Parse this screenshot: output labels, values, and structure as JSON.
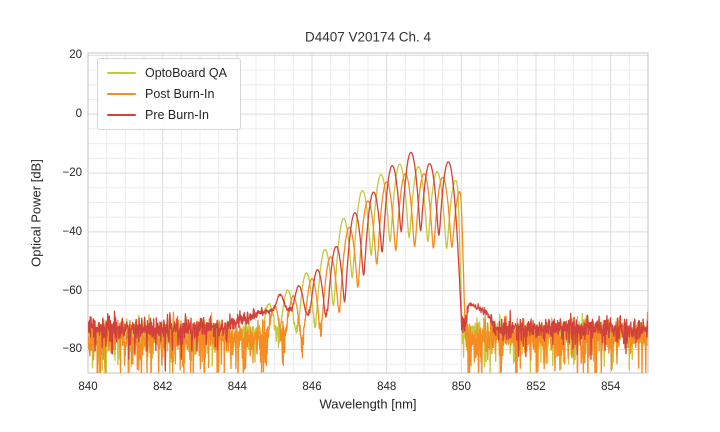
{
  "chart_data": {
    "type": "line",
    "title": "D4407 V20174 Ch. 4",
    "xlabel": "Wavelength [nm]",
    "ylabel": "Optical Power [dB]",
    "xlim": [
      840,
      855
    ],
    "ylim": [
      -88,
      20.8
    ],
    "xticks": [
      840,
      842,
      844,
      846,
      848,
      850,
      852,
      854
    ],
    "xtick_labels": [
      "840",
      "842",
      "844",
      "846",
      "848",
      "850",
      "852",
      "854"
    ],
    "yticks": [
      20,
      0,
      -20,
      -40,
      -60,
      -80
    ],
    "ytick_labels": [
      "20",
      "0",
      "−20",
      "−40",
      "−60",
      "−80"
    ],
    "grid": {
      "major_color": "#dcdcdc",
      "minor_color": "#ececec",
      "spine_color": "#cfcfcf",
      "x_minor_step_nm": 0.5,
      "y_minor_step_db": 5
    },
    "legend": {
      "position": "upper left"
    },
    "sample_step_nm": 0.01,
    "series": [
      {
        "name": "OptoBoard QA",
        "color": "#c3c93c",
        "line_width": 1.3,
        "mode_sigma_nm": 0.07,
        "cutoff_nm": 849.91,
        "modes": [
          [
            844.85,
            -65
          ],
          [
            845.35,
            -60
          ],
          [
            845.85,
            -54
          ],
          [
            846.35,
            -46
          ],
          [
            846.85,
            -35.5
          ],
          [
            847.35,
            -26
          ],
          [
            847.85,
            -20.5
          ],
          [
            848.35,
            -17
          ],
          [
            848.85,
            -17.8
          ],
          [
            849.35,
            -19.5
          ],
          [
            849.85,
            -22.5
          ]
        ],
        "noise": {
          "floor_db": -74.3,
          "sigma_db": 2.3,
          "spike_prob": 0.12,
          "spike_min_db": 2,
          "spike_rand_db": 10,
          "seed": 11
        }
      },
      {
        "name": "Post Burn-In",
        "color": "#f68b22",
        "line_width": 1.3,
        "mode_sigma_nm": 0.07,
        "cutoff_nm": 849.99,
        "modes": [
          [
            845.0,
            -66
          ],
          [
            845.5,
            -62
          ],
          [
            846.0,
            -56
          ],
          [
            846.5,
            -48.5
          ],
          [
            847.0,
            -38.5
          ],
          [
            847.5,
            -29.5
          ],
          [
            848.0,
            -23
          ],
          [
            848.5,
            -20.3
          ],
          [
            849.0,
            -20.3
          ],
          [
            849.5,
            -21.5
          ],
          [
            849.97,
            -26
          ]
        ],
        "noise": {
          "floor_db": -75.5,
          "sigma_db": 2.7,
          "spike_prob": 0.18,
          "spike_min_db": 3,
          "spike_rand_db": 11,
          "seed": 22
        }
      },
      {
        "name": "Pre Burn-In",
        "color": "#d2423a",
        "line_width": 1.3,
        "mode_sigma_nm": 0.07,
        "cutoff_nm": 850.17,
        "modes": [
          [
            845.15,
            -63
          ],
          [
            845.65,
            -59
          ],
          [
            846.15,
            -53
          ],
          [
            846.65,
            -45
          ],
          [
            847.15,
            -33.5
          ],
          [
            847.65,
            -26.5
          ],
          [
            848.15,
            -17.5
          ],
          [
            848.65,
            -13
          ],
          [
            849.15,
            -16.8
          ],
          [
            849.65,
            -16.2
          ]
        ],
        "pedestal": {
          "center_nm": 845.2,
          "sigma_nm": 0.65,
          "peak_db": -67.5
        },
        "shoulder": {
          "start_nm": 850.18,
          "end_nm": 850.8,
          "db_at_start": -64.5,
          "slope_db_per_nm": -9
        },
        "noise": {
          "floor_db": -72.8,
          "sigma_db": 2.0,
          "spike_prob": 0.09,
          "spike_min_db": 2,
          "spike_rand_db": 7,
          "seed": 33
        }
      }
    ]
  }
}
